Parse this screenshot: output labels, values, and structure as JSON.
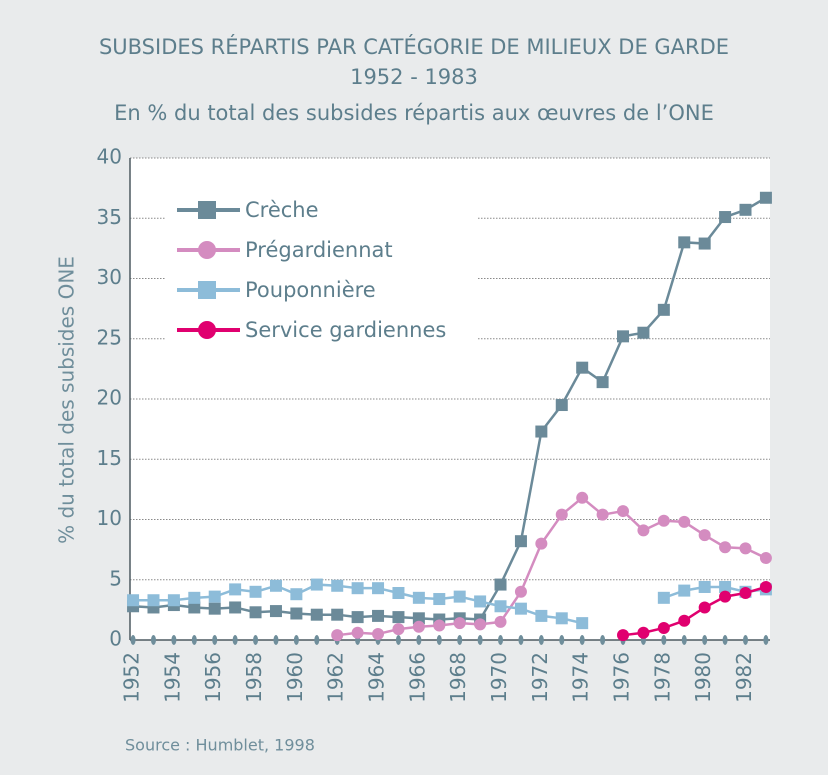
{
  "chart_data": {
    "type": "line",
    "title": [
      "SUBSIDES RÉPARTIS PAR CATÉGORIE DE MILIEUX DE GARDE",
      "1952 - 1983"
    ],
    "subtitle": "En % du total des subsides répartis aux œuvres de l’ONE",
    "ylabel": "% du total des subsides ONE",
    "source": "Source :  Humblet, 1998",
    "x": [
      1952,
      1953,
      1954,
      1955,
      1956,
      1957,
      1958,
      1959,
      1960,
      1961,
      1962,
      1963,
      1964,
      1965,
      1966,
      1967,
      1968,
      1969,
      1970,
      1971,
      1972,
      1973,
      1974,
      1975,
      1976,
      1977,
      1978,
      1979,
      1980,
      1981,
      1982,
      1983
    ],
    "series": [
      {
        "name": "Crèche",
        "color": "#6b8a99",
        "marker": "square",
        "values": [
          2.8,
          2.7,
          2.9,
          2.7,
          2.6,
          2.7,
          2.3,
          2.4,
          2.2,
          2.1,
          2.1,
          1.9,
          2.0,
          1.9,
          1.8,
          1.7,
          1.8,
          1.7,
          4.6,
          8.2,
          17.3,
          19.5,
          22.6,
          21.4,
          25.2,
          25.5,
          27.4,
          33.0,
          32.9,
          35.1,
          35.7,
          36.7
        ]
      },
      {
        "name": "Prégardiennat",
        "color": "#d48cc0",
        "marker": "circle",
        "values": [
          null,
          null,
          null,
          null,
          null,
          null,
          null,
          null,
          null,
          null,
          0.4,
          0.6,
          0.5,
          0.9,
          1.1,
          1.2,
          1.4,
          1.3,
          1.5,
          4.0,
          8.0,
          10.4,
          11.8,
          10.4,
          10.7,
          9.1,
          9.9,
          9.8,
          8.7,
          7.7,
          7.6,
          6.8
        ]
      },
      {
        "name": "Pouponnière",
        "color": "#8dbcd9",
        "marker": "square",
        "values": [
          3.3,
          3.3,
          3.3,
          3.5,
          3.6,
          4.2,
          4.0,
          4.5,
          3.8,
          4.6,
          4.5,
          4.3,
          4.3,
          3.9,
          3.5,
          3.4,
          3.6,
          3.2,
          2.8,
          2.6,
          2.0,
          1.8,
          1.4,
          null,
          null,
          null,
          3.5,
          4.1,
          4.4,
          4.4,
          4.0,
          4.2
        ]
      },
      {
        "name": "Service gardiennes",
        "color": "#e0006f",
        "marker": "circle",
        "values": [
          null,
          null,
          null,
          null,
          null,
          null,
          null,
          null,
          null,
          null,
          null,
          null,
          null,
          null,
          null,
          null,
          null,
          null,
          null,
          null,
          null,
          null,
          null,
          null,
          0.4,
          0.6,
          1.0,
          1.6,
          2.7,
          3.6,
          3.9,
          4.4
        ]
      }
    ],
    "xlim": [
      1951.85,
      1983.2
    ],
    "xticks": [
      1952,
      1954,
      1956,
      1958,
      1960,
      1962,
      1964,
      1966,
      1968,
      1970,
      1972,
      1974,
      1976,
      1978,
      1980,
      1982
    ],
    "ylim": [
      0,
      40
    ],
    "yticks": [
      0,
      5,
      10,
      15,
      20,
      25,
      30,
      35,
      40
    ],
    "grid": true,
    "legend": "upper left"
  }
}
